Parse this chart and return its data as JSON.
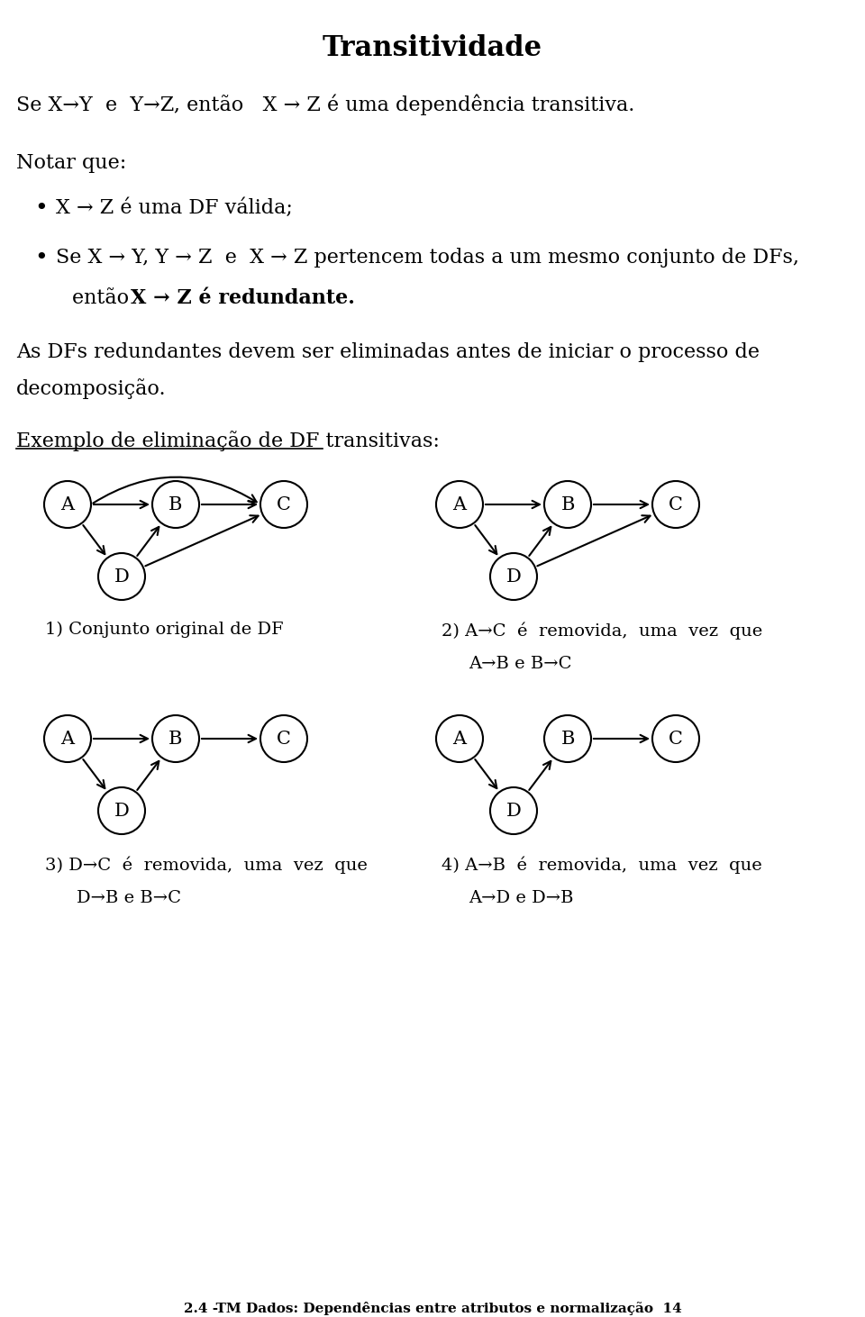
{
  "title": "Transitividade",
  "bg_color": "#ffffff",
  "text_color": "#000000",
  "line1": "Se X→Y  e  Y→Z, então   X → Z é uma dependência transitiva.",
  "notar_que": "Notar que:",
  "bullet1": "X → Z é uma DF válida;",
  "bullet2": "Se X → Y, Y → Z  e  X → Z pertencem todas a um mesmo conjunto de DFs,",
  "bullet2b_normal": "então  ",
  "bullet2b_bold": "X → Z é redundante.",
  "body1": "As DFs redundantes devem ser eliminadas antes de iniciar o processo de",
  "body2": "decomposição.",
  "exemplo_label": "Exemplo de eliminação de DF transitivas:",
  "caption1": "1) Conjunto original de DF",
  "caption2a": "2) A→C  é  removida,  uma  vez  que",
  "caption2b": "A→B e B→C",
  "caption3a": "3) D→C  é  removida,  uma  vez  que",
  "caption3b": "D→B e B→C",
  "caption4a": "4) A→B  é  removida,  uma  vez  que",
  "caption4b": "A→D e D→B",
  "footer": "2.4 -TM Dados: Dependências entre atributos e normalização  14"
}
